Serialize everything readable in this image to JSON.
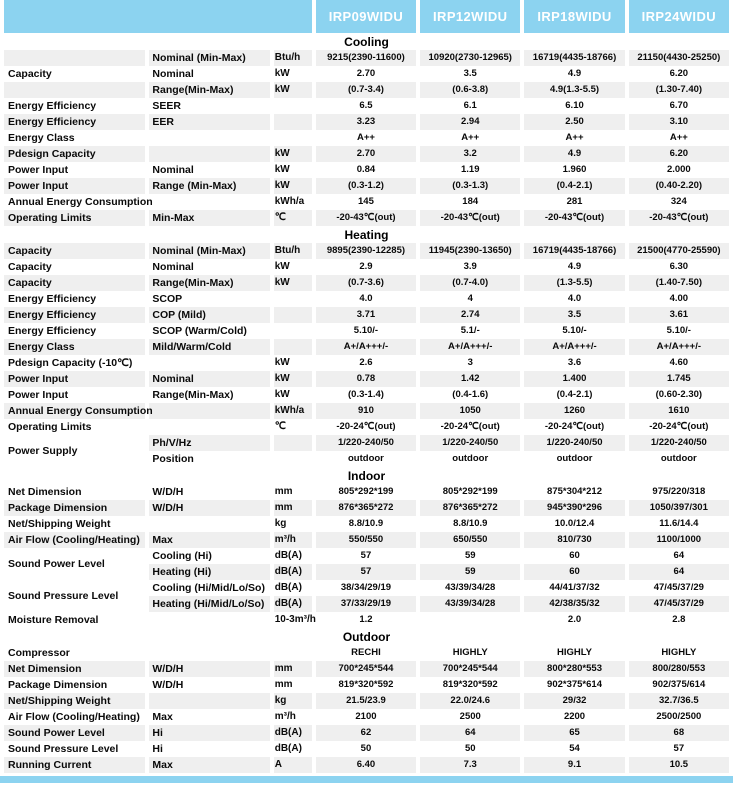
{
  "colors": {
    "header_bg": "#8cd3f0",
    "stripe": "#efefef",
    "header_text": "#ffffff"
  },
  "header": {
    "models": [
      "IRP09WIDU",
      "IRP12WIDU",
      "IRP18WIDU",
      "IRP24WIDU"
    ]
  },
  "sections": [
    {
      "title": "Cooling",
      "rows": [
        {
          "label": "",
          "sub": "Nominal (Min-Max)",
          "unit": "Btu/h",
          "values": [
            "9215(2390-11600)",
            "10920(2730-12965)",
            "16719(4435-18766)",
            "21150(4430-25250)"
          ],
          "stripe": true
        },
        {
          "label": "Capacity",
          "sub": "Nominal",
          "unit": "kW",
          "values": [
            "2.70",
            "3.5",
            "4.9",
            "6.20"
          ],
          "stripe": false
        },
        {
          "label": "",
          "sub": "Range(Min-Max)",
          "unit": "kW",
          "values": [
            "(0.7-3.4)",
            "(0.6-3.8)",
            "4.9(1.3-5.5)",
            "(1.30-7.40)"
          ],
          "stripe": true
        },
        {
          "label": "Energy Efficiency",
          "sub": "SEER",
          "unit": "",
          "values": [
            "6.5",
            "6.1",
            "6.10",
            "6.70"
          ],
          "stripe": false
        },
        {
          "label": "Energy Efficiency",
          "sub": "EER",
          "unit": "",
          "values": [
            "3.23",
            "2.94",
            "2.50",
            "3.10"
          ],
          "stripe": true
        },
        {
          "label": "Energy Class",
          "sub": "",
          "unit": "",
          "values": [
            "A++",
            "A++",
            "A++",
            "A++"
          ],
          "stripe": false
        },
        {
          "label": "Pdesign Capacity",
          "sub": "",
          "unit": "kW",
          "values": [
            "2.70",
            "3.2",
            "4.9",
            "6.20"
          ],
          "stripe": true
        },
        {
          "label": "Power Input",
          "sub": "Nominal",
          "unit": "kW",
          "values": [
            "0.84",
            "1.19",
            "1.960",
            "2.000"
          ],
          "stripe": false
        },
        {
          "label": "Power Input",
          "sub": "Range (Min-Max)",
          "unit": "kW",
          "values": [
            "(0.3-1.2)",
            "(0.3-1.3)",
            "(0.4-2.1)",
            "(0.40-2.20)"
          ],
          "stripe": true
        },
        {
          "label": "Annual Energy Consumption",
          "sub": "",
          "unit": "kWh/a",
          "values": [
            "145",
            "184",
            "281",
            "324"
          ],
          "stripe": false
        },
        {
          "label": "Operating Limits",
          "sub": "Min-Max",
          "unit": "℃",
          "values": [
            "-20-43℃(out)",
            "-20-43℃(out)",
            "-20-43℃(out)",
            "-20-43℃(out)"
          ],
          "stripe": true
        }
      ]
    },
    {
      "title": "Heating",
      "rows": [
        {
          "label": "Capacity",
          "sub": "Nominal (Min-Max)",
          "unit": "Btu/h",
          "values": [
            "9895(2390-12285)",
            "11945(2390-13650)",
            "16719(4435-18766)",
            "21500(4770-25590)"
          ],
          "stripe": true
        },
        {
          "label": "Capacity",
          "sub": "Nominal",
          "unit": "kW",
          "values": [
            "2.9",
            "3.9",
            "4.9",
            "6.30"
          ],
          "stripe": false
        },
        {
          "label": "Capacity",
          "sub": "Range(Min-Max)",
          "unit": "kW",
          "values": [
            "(0.7-3.6)",
            "(0.7-4.0)",
            "(1.3-5.5)",
            "(1.40-7.50)"
          ],
          "stripe": true
        },
        {
          "label": "Energy Efficiency",
          "sub": "SCOP",
          "unit": "",
          "values": [
            "4.0",
            "4",
            "4.0",
            "4.00"
          ],
          "stripe": false
        },
        {
          "label": "Energy Efficiency",
          "sub": "COP (Mild)",
          "unit": "",
          "values": [
            "3.71",
            "2.74",
            "3.5",
            "3.61"
          ],
          "stripe": true
        },
        {
          "label": "Energy Efficiency",
          "sub": "SCOP (Warm/Cold)",
          "unit": "",
          "values": [
            "5.10/-",
            "5.1/-",
            "5.10/-",
            "5.10/-"
          ],
          "stripe": false
        },
        {
          "label": "Energy Class",
          "sub": "Mild/Warm/Cold",
          "unit": "",
          "values": [
            "A+/A+++/-",
            "A+/A+++/-",
            "A+/A+++/-",
            "A+/A+++/-"
          ],
          "stripe": true
        },
        {
          "label": "Pdesign Capacity (-10℃)",
          "sub": "",
          "unit": "kW",
          "values": [
            "2.6",
            "3",
            "3.6",
            "4.60"
          ],
          "stripe": false
        },
        {
          "label": "Power Input",
          "sub": "Nominal",
          "unit": "kW",
          "values": [
            "0.78",
            "1.42",
            "1.400",
            "1.745"
          ],
          "stripe": true
        },
        {
          "label": "Power Input",
          "sub": "Range(Min-Max)",
          "unit": "kW",
          "values": [
            "(0.3-1.4)",
            "(0.4-1.6)",
            "(0.4-2.1)",
            "(0.60-2.30)"
          ],
          "stripe": false
        },
        {
          "label": "Annual Energy Consumption",
          "sub": "",
          "unit": "kWh/a",
          "values": [
            "910",
            "1050",
            "1260",
            "1610"
          ],
          "stripe": true
        },
        {
          "label": "Operating Limits",
          "sub": "",
          "unit": "℃",
          "values": [
            "-20-24℃(out)",
            "-20-24℃(out)",
            "-20-24℃(out)",
            "-20-24℃(out)"
          ],
          "stripe": false
        },
        {
          "label": "Power Supply",
          "label_rowspan": 2,
          "label_merged": true,
          "sub": "Ph/V/Hz",
          "unit": "",
          "values": [
            "1/220-240/50",
            "1/220-240/50",
            "1/220-240/50",
            "1/220-240/50"
          ],
          "stripe": true
        },
        {
          "label": null,
          "sub": "Position",
          "unit": "",
          "values": [
            "outdoor",
            "outdoor",
            "outdoor",
            "outdoor"
          ],
          "stripe": false
        }
      ]
    },
    {
      "title": "Indoor",
      "rows": [
        {
          "label": "Net Dimension",
          "sub": "W/D/H",
          "unit": "mm",
          "values": [
            "805*292*199",
            "805*292*199",
            "875*304*212",
            "975/220/318"
          ],
          "stripe": false
        },
        {
          "label": "Package Dimension",
          "sub": "W/D/H",
          "unit": "mm",
          "values": [
            "876*365*272",
            "876*365*272",
            "945*390*296",
            "1050/397/301"
          ],
          "stripe": true
        },
        {
          "label": "Net/Shipping Weight",
          "sub": "",
          "unit": "kg",
          "values": [
            "8.8/10.9",
            "8.8/10.9",
            "10.0/12.4",
            "11.6/14.4"
          ],
          "stripe": false
        },
        {
          "label": "Air Flow (Cooling/Heating)",
          "sub": "Max",
          "unit": "m³/h",
          "values": [
            "550/550",
            "650/550",
            "810/730",
            "1100/1000"
          ],
          "stripe": true
        },
        {
          "label": "Sound Power Level",
          "label_rowspan": 2,
          "label_merged": true,
          "sub": "Cooling (Hi)",
          "unit": "dB(A)",
          "values": [
            "57",
            "59",
            "60",
            "64"
          ],
          "stripe": false
        },
        {
          "label": null,
          "sub": "Heating (Hi)",
          "unit": "dB(A)",
          "values": [
            "57",
            "59",
            "60",
            "64"
          ],
          "stripe": true
        },
        {
          "label": "Sound Pressure Level",
          "label_rowspan": 2,
          "label_merged": true,
          "sub": "Cooling (Hi/Mid/Lo/So)",
          "unit": "dB(A)",
          "values": [
            "38/34/29/19",
            "43/39/34/28",
            "44/41/37/32",
            "47/45/37/29"
          ],
          "stripe": false
        },
        {
          "label": null,
          "sub": "Heating (Hi/Mid/Lo/So)",
          "unit": "dB(A)",
          "values": [
            "37/33/29/19",
            "43/39/34/28",
            "42/38/35/32",
            "47/45/37/29"
          ],
          "stripe": true
        },
        {
          "label": "Moisture Removal",
          "sub": "",
          "unit": "10-3m³/h",
          "values": [
            "1.2",
            "",
            "2.0",
            "2.8"
          ],
          "stripe": false
        }
      ]
    },
    {
      "title": "Outdoor",
      "rows": [
        {
          "label": "Compressor",
          "sub": "",
          "unit": "",
          "values": [
            "RECHI",
            "HIGHLY",
            "HIGHLY",
            "HIGHLY"
          ],
          "stripe": false
        },
        {
          "label": "Net Dimension",
          "sub": "W/D/H",
          "unit": "mm",
          "values": [
            "700*245*544",
            "700*245*544",
            "800*280*553",
            "800/280/553"
          ],
          "stripe": true
        },
        {
          "label": "Package Dimension",
          "sub": "W/D/H",
          "unit": "mm",
          "values": [
            "819*320*592",
            "819*320*592",
            "902*375*614",
            "902/375/614"
          ],
          "stripe": false
        },
        {
          "label": "Net/Shipping Weight",
          "sub": "",
          "unit": "kg",
          "values": [
            "21.5/23.9",
            "22.0/24.6",
            "29/32",
            "32.7/36.5"
          ],
          "stripe": true
        },
        {
          "label": "Air Flow (Cooling/Heating)",
          "sub": "Max",
          "unit": "m³/h",
          "values": [
            "2100",
            "2500",
            "2200",
            "2500/2500"
          ],
          "stripe": false
        },
        {
          "label": "Sound Power Level",
          "sub": "Hi",
          "unit": "dB(A)",
          "values": [
            "62",
            "64",
            "65",
            "68"
          ],
          "stripe": true
        },
        {
          "label": "Sound Pressure Level",
          "sub": "Hi",
          "unit": "dB(A)",
          "values": [
            "50",
            "50",
            "54",
            "57"
          ],
          "stripe": false
        },
        {
          "label": "Running Current",
          "sub": "Max",
          "unit": "A",
          "values": [
            "6.40",
            "7.3",
            "9.1",
            "10.5"
          ],
          "stripe": true
        }
      ]
    }
  ]
}
